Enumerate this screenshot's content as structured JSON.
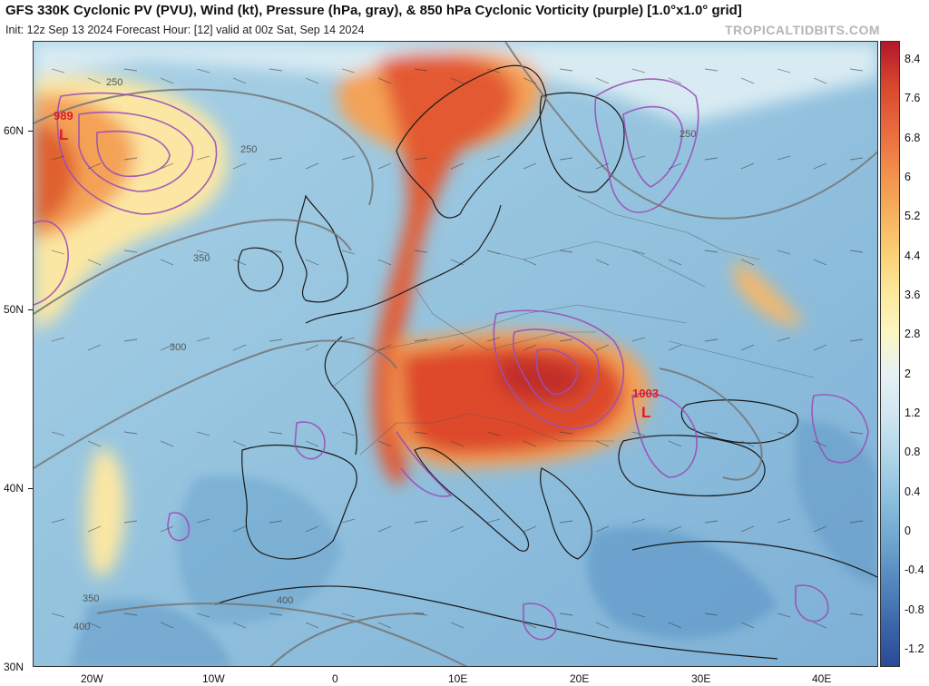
{
  "header": {
    "title": "GFS 330K Cyclonic PV (PVU), Wind (kt), Pressure (hPa, gray), & 850 hPa Cyclonic Vorticity (purple) [1.0°x1.0° grid]",
    "subtitle": "Init: 12z Sep 13 2024   Forecast Hour: [12]   valid at 00z Sat, Sep 14 2024",
    "credit": "TROPICALTIDBITS.COM"
  },
  "map": {
    "lat_labels": [
      "60N",
      "50N",
      "40N",
      "30N"
    ],
    "lon_labels": [
      "20W",
      "10W",
      "0",
      "10E",
      "20E",
      "30E",
      "40E"
    ],
    "lows": [
      {
        "value": "989",
        "symbol": "L"
      },
      {
        "value": "1003",
        "symbol": "L"
      }
    ],
    "pressure_labels": [
      "250",
      "250",
      "250",
      "350",
      "300",
      "350",
      "400",
      "400"
    ]
  },
  "colorbar": {
    "labels": [
      "8.4",
      "7.6",
      "6.8",
      "6",
      "5.2",
      "4.4",
      "3.6",
      "2.8",
      "2",
      "1.2",
      "0.8",
      "0.4",
      "0",
      "-0.4",
      "-0.8",
      "-1.2"
    ],
    "colors": [
      "#b2182b",
      "#d6452d",
      "#e8663d",
      "#f08a4b",
      "#f5ad5b",
      "#f9cd73",
      "#fbe89a",
      "#fdf6c4",
      "#e6f1f4",
      "#cfe6f0",
      "#aed4e8",
      "#8cbfdd",
      "#6ea6cf",
      "#5486bd",
      "#3d66aa",
      "#2a4a96"
    ]
  },
  "colors": {
    "pv_high": "#d9432c",
    "pv_mid": "#f4a256",
    "pv_low": "#fbe7a3",
    "background_blue": "#8fc0de",
    "vorticity": "#9b4fb8",
    "pressure": "#7a7a7a",
    "low_marker": "#d81e2b"
  }
}
